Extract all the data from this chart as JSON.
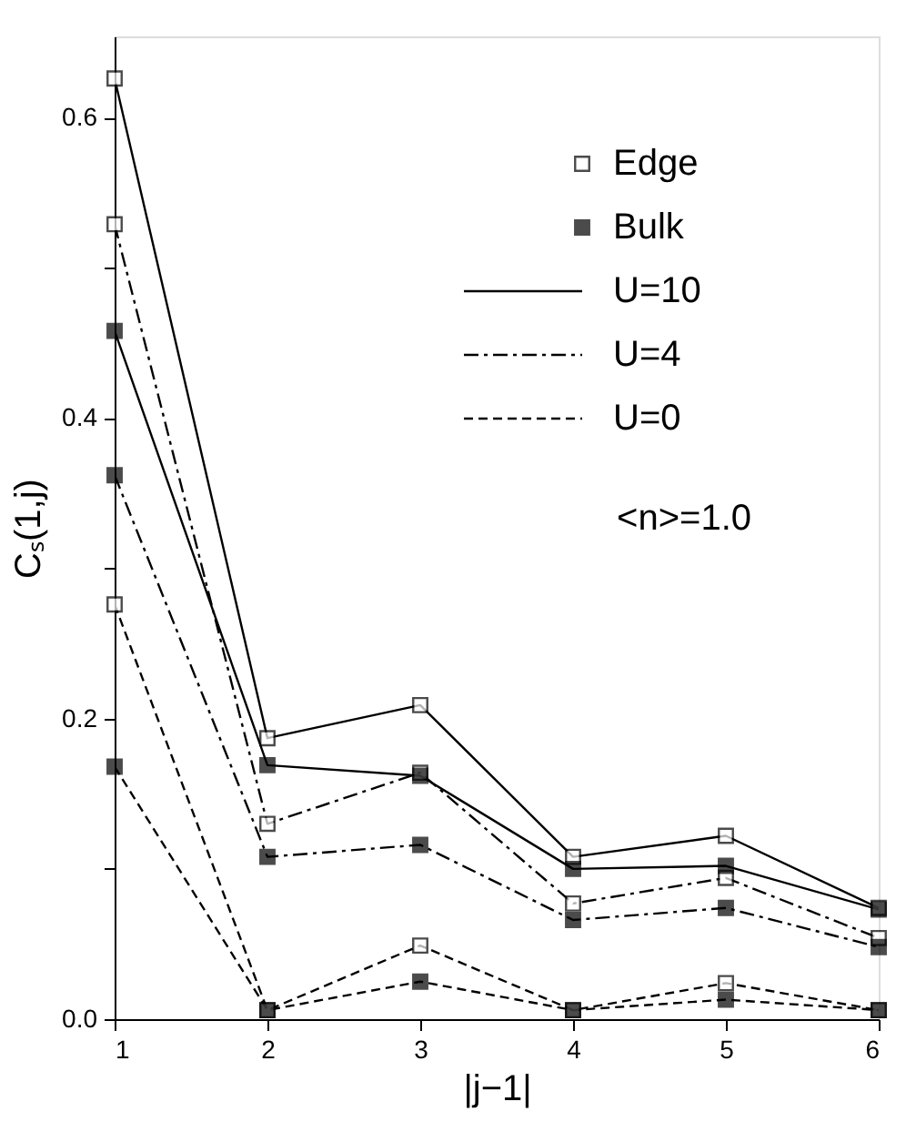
{
  "chart_data": {
    "type": "line",
    "xlabel": "|j−1|",
    "ylabel": "Cₛ(1,j)",
    "x": [
      1,
      2,
      3,
      4,
      5,
      6
    ],
    "xlim": [
      1,
      6
    ],
    "xticks": [
      1,
      2,
      3,
      4,
      5,
      6
    ],
    "ylim": [
      0,
      0.654
    ],
    "yticks": [
      {
        "value": 0,
        "label": "0.0"
      },
      {
        "value": 0.1,
        "label": null
      },
      {
        "value": 0.2,
        "label": "0.2"
      },
      {
        "value": 0.3,
        "label": null
      },
      {
        "value": 0.4,
        "label": "0.4"
      },
      {
        "value": 0.5,
        "label": null
      },
      {
        "value": 0.6,
        "label": "0.6"
      }
    ],
    "marker": "square",
    "grid": false,
    "legend": "top right",
    "series": [
      {
        "name": "Edge",
        "color": "#000000",
        "line_style": "solid",
        "values": [
          0.626,
          0.187,
          0.209,
          0.108,
          0.122,
          0.074
        ]
      },
      {
        "name": "Bulk",
        "color": "#000000",
        "line_style": "solid",
        "values": [
          0.458,
          0.169,
          0.162,
          0.1,
          0.102,
          0.073
        ]
      },
      {
        "color": "#000000",
        "line_style": "dashdot",
        "values": [
          0.529,
          0.13,
          0.164,
          0.077,
          0.094,
          0.054
        ]
      },
      {
        "color": "#000000",
        "line_style": "dashdot",
        "values": [
          0.362,
          0.108,
          0.116,
          0.066,
          0.074,
          0.048
        ]
      },
      {
        "color": "#000000",
        "line_style": "dashed",
        "values": [
          0.276,
          0.006,
          0.049,
          0.006,
          0.024,
          0.006
        ]
      },
      {
        "color": "#000000",
        "line_style": "dashed",
        "values": [
          0.168,
          0.006,
          0.025,
          0.006,
          0.013,
          0.006
        ]
      }
    ],
    "annotations": [
      "U=10",
      "U=4",
      "U=0",
      "<n>=1.0"
    ]
  }
}
